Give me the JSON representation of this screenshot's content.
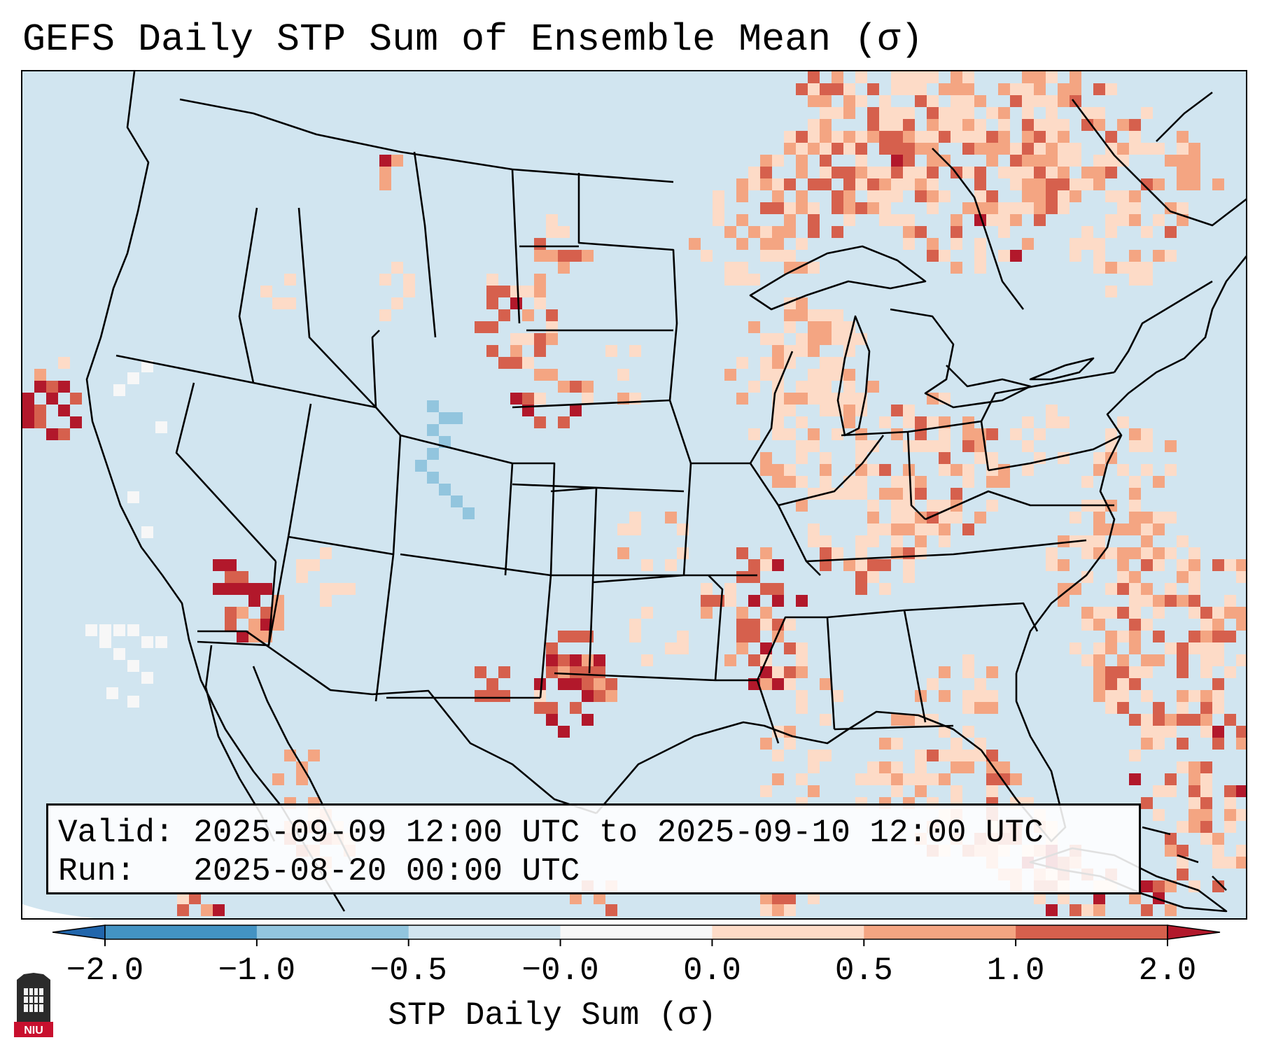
{
  "title": "GEFS Daily STP Sum of Ensemble Mean (σ)",
  "info": {
    "valid_label": "Valid:",
    "valid_value": "2025-09-09 12:00 UTC to 2025-09-10 12:00 UTC",
    "run_label": "Run:",
    "run_value": "2025-08-20 00:00 UTC"
  },
  "colorbar": {
    "label": "STP Daily Sum (σ)",
    "ticks": [
      "−2.0",
      "−1.0",
      "−0.5",
      "−0.0",
      "0.0",
      "0.5",
      "1.0",
      "2.0"
    ],
    "colors": {
      "below": "#2166ac",
      "bin_-2_-1": "#4393c3",
      "bin_-1_-0.5": "#92c5de",
      "bin_-0.5_-0": "#d1e5f0",
      "bin_-0_0": "#f7f7f7",
      "bin_0_0.5": "#fddbc7",
      "bin_0.5_1": "#f4a582",
      "bin_1_2": "#d6604d",
      "above": "#b2182b"
    }
  },
  "logo": {
    "text": "NIU",
    "colors": {
      "body": "#2b2b2b",
      "banner": "#c8102e"
    }
  }
}
